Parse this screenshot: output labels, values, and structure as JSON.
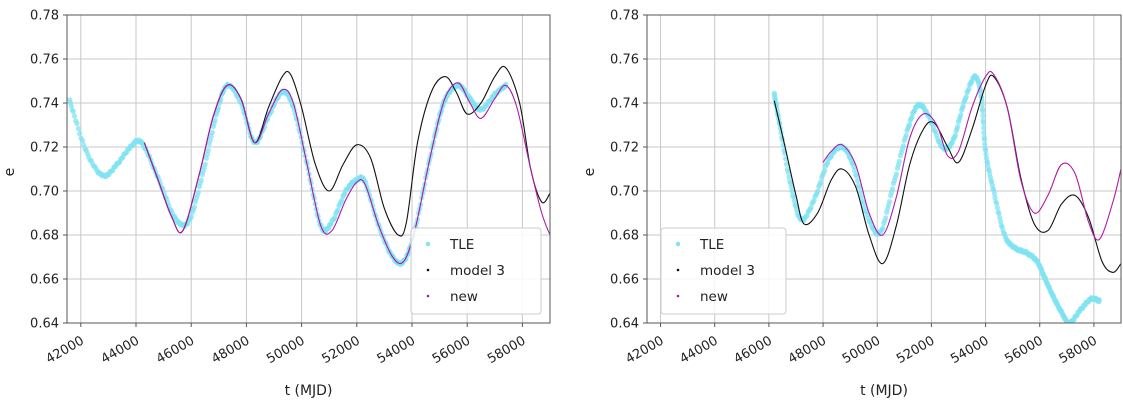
{
  "colors": {
    "tle": "#7fe3f2",
    "model3": "#111111",
    "new": "#b01aa8",
    "grid": "#c8c8c8",
    "axis": "#555555"
  },
  "chart_data": [
    {
      "type": "line",
      "xlabel": "t (MJD)",
      "ylabel": "e",
      "xlim": [
        41500,
        59000
      ],
      "ylim": [
        0.64,
        0.78
      ],
      "xticks": [
        42000,
        44000,
        46000,
        48000,
        50000,
        52000,
        54000,
        56000,
        58000
      ],
      "yticks": [
        "0.64",
        "0.66",
        "0.68",
        "0.70",
        "0.72",
        "0.74",
        "0.76",
        "0.78"
      ],
      "grid": true,
      "legend_position": "lower-right",
      "legend": [
        "TLE",
        "model 3",
        "new"
      ],
      "series": [
        {
          "name": "TLE",
          "marker": "dots",
          "x": [
            41600,
            42200,
            42800,
            43300,
            43800,
            44200,
            44800,
            45400,
            45900,
            46400,
            46900,
            47300,
            47800,
            48300,
            48800,
            49300,
            49700,
            50200,
            50700,
            51100,
            51600,
            52000,
            52300,
            52800,
            53300,
            53700,
            54100,
            54600,
            55000,
            55300,
            55700,
            56100,
            56500,
            57000,
            57400
          ],
          "y": [
            0.741,
            0.718,
            0.707,
            0.712,
            0.72,
            0.722,
            0.706,
            0.688,
            0.686,
            0.707,
            0.734,
            0.748,
            0.74,
            0.722,
            0.734,
            0.745,
            0.738,
            0.712,
            0.684,
            0.686,
            0.7,
            0.705,
            0.704,
            0.684,
            0.67,
            0.668,
            0.682,
            0.712,
            0.734,
            0.744,
            0.748,
            0.742,
            0.737,
            0.744,
            0.748
          ]
        },
        {
          "name": "model 3",
          "marker": "line",
          "x": [
            44300,
            44800,
            45300,
            45700,
            46300,
            46800,
            47300,
            47800,
            48300,
            48800,
            49300,
            49600,
            50000,
            50500,
            51000,
            51500,
            52000,
            52500,
            53000,
            53500,
            53800,
            54200,
            54700,
            55200,
            55600,
            56000,
            56500,
            57000,
            57400,
            57900,
            58300,
            58700,
            59000
          ],
          "y": [
            0.722,
            0.705,
            0.688,
            0.682,
            0.708,
            0.734,
            0.748,
            0.742,
            0.722,
            0.738,
            0.752,
            0.753,
            0.738,
            0.712,
            0.7,
            0.712,
            0.721,
            0.715,
            0.692,
            0.68,
            0.686,
            0.722,
            0.745,
            0.752,
            0.745,
            0.735,
            0.74,
            0.752,
            0.756,
            0.74,
            0.71,
            0.695,
            0.699
          ]
        },
        {
          "name": "new",
          "marker": "line",
          "x": [
            44300,
            44800,
            45300,
            45700,
            46300,
            46800,
            47300,
            47800,
            48300,
            48800,
            49300,
            49700,
            50200,
            50700,
            51100,
            51600,
            52000,
            52300,
            52800,
            53300,
            53700,
            54100,
            54600,
            55000,
            55300,
            55700,
            56100,
            56500,
            57000,
            57400,
            57800,
            58300,
            58700,
            59000
          ],
          "y": [
            0.722,
            0.705,
            0.688,
            0.682,
            0.708,
            0.734,
            0.748,
            0.742,
            0.722,
            0.735,
            0.746,
            0.74,
            0.712,
            0.684,
            0.682,
            0.696,
            0.704,
            0.703,
            0.684,
            0.67,
            0.668,
            0.682,
            0.712,
            0.734,
            0.745,
            0.749,
            0.74,
            0.733,
            0.742,
            0.748,
            0.738,
            0.71,
            0.69,
            0.68
          ]
        }
      ]
    },
    {
      "type": "line",
      "xlabel": "t (MJD)",
      "ylabel": "e",
      "xlim": [
        41500,
        59000
      ],
      "ylim": [
        0.64,
        0.78
      ],
      "xticks": [
        42000,
        44000,
        46000,
        48000,
        50000,
        52000,
        54000,
        56000,
        58000
      ],
      "yticks": [
        "0.64",
        "0.66",
        "0.68",
        "0.70",
        "0.72",
        "0.74",
        "0.76",
        "0.78"
      ],
      "grid": true,
      "legend_position": "lower-left",
      "legend": [
        "TLE",
        "model 3",
        "new"
      ],
      "series": [
        {
          "name": "TLE",
          "marker": "dots",
          "x": [
            46200,
            46400,
            46800,
            47200,
            47700,
            48200,
            48700,
            49100,
            49600,
            50100,
            50600,
            51100,
            51500,
            51900,
            52400,
            52800,
            53200,
            53600,
            53850,
            54000,
            54300,
            54700,
            55100,
            55500,
            55900,
            56200,
            56500,
            56800,
            57100,
            57500,
            57900,
            58200
          ],
          "y": [
            0.744,
            0.73,
            0.703,
            0.687,
            0.697,
            0.714,
            0.72,
            0.712,
            0.69,
            0.681,
            0.703,
            0.727,
            0.739,
            0.734,
            0.72,
            0.723,
            0.74,
            0.752,
            0.742,
            0.718,
            0.7,
            0.68,
            0.674,
            0.672,
            0.668,
            0.66,
            0.652,
            0.645,
            0.64,
            0.646,
            0.651,
            0.65
          ]
        },
        {
          "name": "model 3",
          "marker": "line",
          "x": [
            46200,
            46600,
            47000,
            47300,
            47800,
            48300,
            48700,
            49200,
            49700,
            50200,
            50700,
            51200,
            51700,
            52100,
            52600,
            53000,
            53500,
            54000,
            54300,
            54800,
            55300,
            55800,
            56300,
            56800,
            57300,
            57800,
            58300,
            58700,
            59000
          ],
          "y": [
            0.741,
            0.72,
            0.698,
            0.685,
            0.69,
            0.705,
            0.71,
            0.702,
            0.68,
            0.667,
            0.684,
            0.712,
            0.728,
            0.731,
            0.72,
            0.713,
            0.728,
            0.748,
            0.752,
            0.738,
            0.706,
            0.685,
            0.682,
            0.694,
            0.698,
            0.688,
            0.668,
            0.663,
            0.667
          ]
        },
        {
          "name": "new",
          "marker": "line",
          "x": [
            48000,
            48300,
            48700,
            49200,
            49700,
            50200,
            50700,
            51200,
            51700,
            52200,
            52600,
            53000,
            53500,
            54000,
            54300,
            54800,
            55300,
            55800,
            56300,
            56800,
            57300,
            57800,
            58200,
            58700,
            59000
          ],
          "y": [
            0.713,
            0.718,
            0.721,
            0.712,
            0.69,
            0.68,
            0.697,
            0.724,
            0.735,
            0.73,
            0.716,
            0.718,
            0.738,
            0.752,
            0.753,
            0.738,
            0.705,
            0.69,
            0.698,
            0.712,
            0.708,
            0.686,
            0.678,
            0.695,
            0.71
          ]
        }
      ]
    }
  ]
}
